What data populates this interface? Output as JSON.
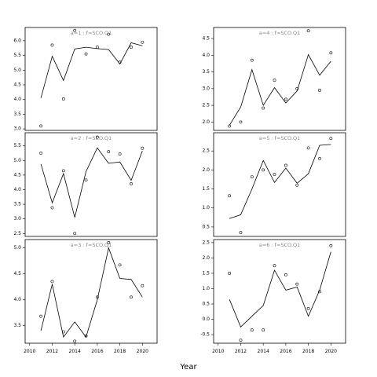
{
  "xlabel": "Year",
  "chart_data": [
    {
      "type": "scatter",
      "title": "a=1 : f=SCO.Q1",
      "x": [
        2011,
        2012,
        2013,
        2014,
        2015,
        2016,
        2017,
        2018,
        2019,
        2020
      ],
      "points": [
        3.1,
        5.85,
        4.02,
        6.35,
        5.55,
        5.78,
        6.22,
        5.27,
        5.78,
        5.95
      ],
      "fit": [
        4.05,
        5.47,
        4.65,
        5.72,
        5.78,
        5.73,
        5.7,
        5.21,
        5.93,
        5.83
      ],
      "yticks": [
        3.0,
        3.5,
        4.0,
        4.5,
        5.0,
        5.5,
        6.0
      ],
      "ytick_labels": [
        "3.0",
        "3.5",
        "4.0",
        "4.5",
        "5.0",
        "5.5",
        "6.0"
      ],
      "ylim": [
        2.95,
        6.45
      ],
      "xticks": [],
      "xlim": [
        2009.6,
        2021.3
      ]
    },
    {
      "type": "scatter",
      "title": "a=2 : f=SCO.Q1",
      "x": [
        2011,
        2012,
        2013,
        2014,
        2015,
        2016,
        2017,
        2018,
        2019,
        2020
      ],
      "points": [
        5.25,
        3.38,
        4.65,
        2.5,
        4.33,
        5.8,
        5.3,
        5.22,
        4.2,
        5.42
      ],
      "fit": [
        4.88,
        3.55,
        4.55,
        3.05,
        4.62,
        5.43,
        4.9,
        4.95,
        4.32,
        5.33
      ],
      "yticks": [
        2.5,
        3.0,
        3.5,
        4.0,
        4.5,
        5.0,
        5.5
      ],
      "ytick_labels": [
        "2.5",
        "3.0",
        "3.5",
        "4.0",
        "4.5",
        "5.0",
        "5.5"
      ],
      "ylim": [
        2.4,
        5.95
      ],
      "xticks": [],
      "xlim": [
        2009.6,
        2021.3
      ]
    },
    {
      "type": "scatter",
      "title": "a=3 : f=SCO.Q1",
      "x": [
        2011,
        2012,
        2013,
        2014,
        2015,
        2016,
        2017,
        2018,
        2019,
        2020
      ],
      "points": [
        3.68,
        4.35,
        3.38,
        3.2,
        3.3,
        4.05,
        5.1,
        4.67,
        4.05,
        4.27
      ],
      "fit": [
        3.4,
        4.3,
        3.28,
        3.57,
        3.28,
        4.0,
        5.0,
        4.41,
        4.39,
        4.05
      ],
      "yticks": [
        3.5,
        4.0,
        4.5,
        5.0
      ],
      "ytick_labels": [
        "3.5",
        "4.0",
        "4.5",
        "5.0"
      ],
      "ylim": [
        3.16,
        5.16
      ],
      "xticks": [
        2010,
        2012,
        2014,
        2016,
        2018,
        2020
      ],
      "xlim": [
        2009.6,
        2021.3
      ]
    },
    {
      "type": "scatter",
      "title": "a=4 : f=SCO.Q1",
      "x": [
        2011,
        2012,
        2013,
        2014,
        2015,
        2016,
        2017,
        2018,
        2019,
        2020
      ],
      "points": [
        1.88,
        2.0,
        3.85,
        2.42,
        3.25,
        2.68,
        3.0,
        4.73,
        2.95,
        4.07
      ],
      "fit": [
        1.9,
        2.45,
        3.57,
        2.5,
        3.03,
        2.57,
        2.93,
        4.02,
        3.4,
        3.82
      ],
      "yticks": [
        2.0,
        2.5,
        3.0,
        3.5,
        4.0,
        4.5
      ],
      "ytick_labels": [
        "2.0",
        "2.5",
        "3.0",
        "3.5",
        "4.0",
        "4.5"
      ],
      "ylim": [
        1.75,
        4.83
      ],
      "xticks": [],
      "xlim": [
        2009.6,
        2021.3
      ]
    },
    {
      "type": "scatter",
      "title": "a=5 : f=SCO.Q1",
      "x": [
        2011,
        2012,
        2013,
        2014,
        2015,
        2016,
        2017,
        2018,
        2019,
        2020
      ],
      "points": [
        1.32,
        0.35,
        1.82,
        2.0,
        1.88,
        2.12,
        1.6,
        2.58,
        2.3,
        2.83
      ],
      "fit": [
        0.72,
        0.82,
        1.5,
        2.25,
        1.67,
        2.05,
        1.65,
        1.9,
        2.65,
        2.67
      ],
      "yticks": [
        0.5,
        1.0,
        1.5,
        2.0,
        2.5
      ],
      "ytick_labels": [
        "0.5",
        "1.0",
        "1.5",
        "2.0",
        "2.5"
      ],
      "ylim": [
        0.25,
        2.98
      ],
      "xticks": [],
      "xlim": [
        2009.6,
        2021.3
      ]
    },
    {
      "type": "scatter",
      "title": "a=6 : f=SCO.Q1",
      "x": [
        2011,
        2012,
        2013,
        2014,
        2015,
        2016,
        2017,
        2018,
        2019,
        2020
      ],
      "points": [
        1.5,
        -0.68,
        -0.35,
        -0.35,
        1.75,
        1.45,
        1.15,
        0.35,
        0.9,
        2.4
      ],
      "fit": [
        0.65,
        -0.25,
        0.1,
        0.45,
        1.6,
        0.95,
        1.05,
        0.1,
        0.95,
        2.2
      ],
      "yticks": [
        -0.5,
        0.0,
        0.5,
        1.0,
        1.5,
        2.0,
        2.5
      ],
      "ytick_labels": [
        "-0.5",
        "0.0",
        "0.5",
        "1.0",
        "1.5",
        "2.0",
        "2.5"
      ],
      "ylim": [
        -0.78,
        2.6
      ],
      "xticks": [
        2010,
        2012,
        2014,
        2016,
        2018,
        2020
      ],
      "xlim": [
        2009.6,
        2021.3
      ]
    }
  ]
}
